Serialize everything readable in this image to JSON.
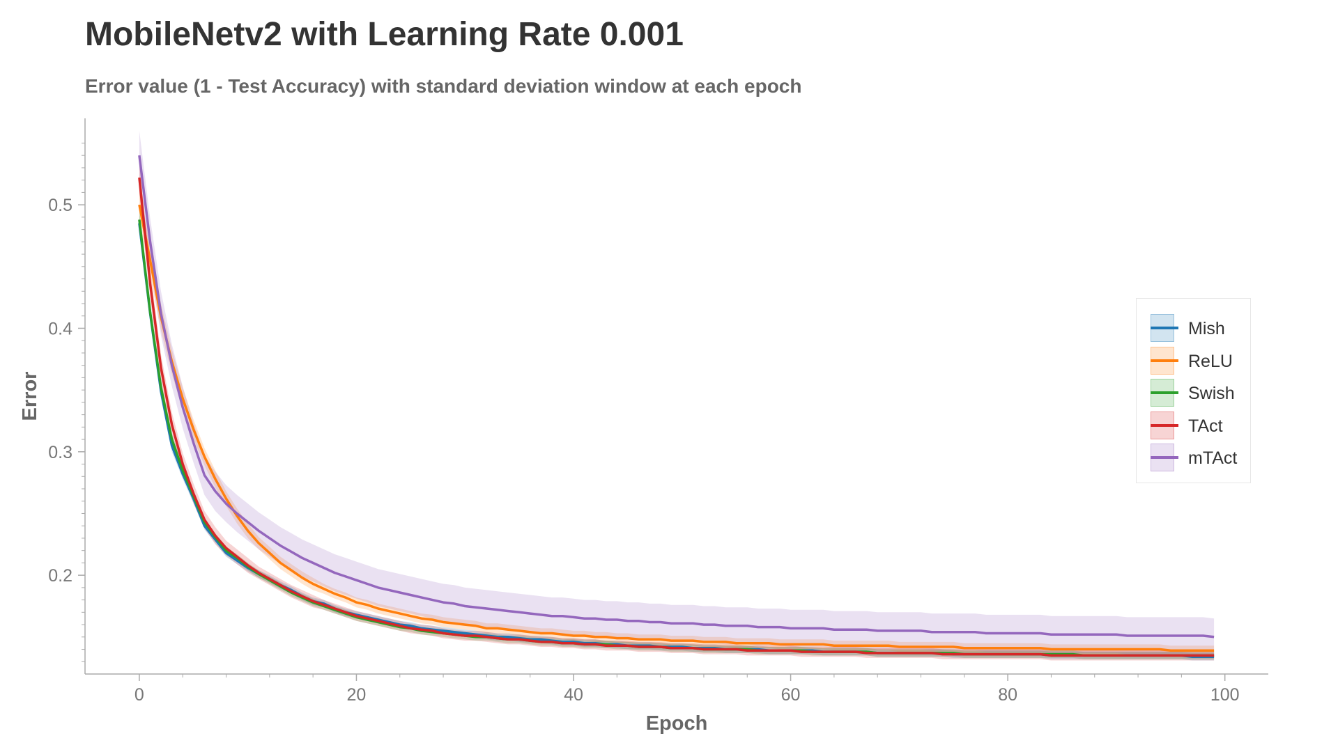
{
  "chart_data": {
    "type": "line",
    "title": "MobileNetv2 with Learning Rate 0.001",
    "subtitle": "Error value (1 - Test Accuracy) with standard deviation window at each epoch",
    "xlabel": "Epoch",
    "ylabel": "Error",
    "xlim": [
      -5,
      104
    ],
    "ylim": [
      0.12,
      0.57
    ],
    "xticks": [
      0,
      20,
      40,
      60,
      80,
      100
    ],
    "yticks": [
      0.2,
      0.3,
      0.4,
      0.5
    ],
    "grid": false,
    "legend_position": "right",
    "x": [
      0,
      1,
      2,
      3,
      4,
      5,
      6,
      7,
      8,
      9,
      10,
      11,
      12,
      13,
      14,
      15,
      16,
      17,
      18,
      19,
      20,
      21,
      22,
      23,
      24,
      25,
      26,
      27,
      28,
      29,
      30,
      31,
      32,
      33,
      34,
      35,
      36,
      37,
      38,
      39,
      40,
      41,
      42,
      43,
      44,
      45,
      46,
      47,
      48,
      49,
      50,
      51,
      52,
      53,
      54,
      55,
      56,
      57,
      58,
      59,
      60,
      61,
      62,
      63,
      64,
      65,
      66,
      67,
      68,
      69,
      70,
      71,
      72,
      73,
      74,
      75,
      76,
      77,
      78,
      79,
      80,
      81,
      82,
      83,
      84,
      85,
      86,
      87,
      88,
      89,
      90,
      91,
      92,
      93,
      94,
      95,
      96,
      97,
      98,
      99
    ],
    "series": [
      {
        "name": "Mish",
        "color": "#1f77b4",
        "values": [
          0.485,
          0.412,
          0.349,
          0.305,
          0.282,
          0.262,
          0.24,
          0.229,
          0.218,
          0.212,
          0.206,
          0.201,
          0.197,
          0.192,
          0.188,
          0.183,
          0.179,
          0.177,
          0.173,
          0.17,
          0.168,
          0.166,
          0.164,
          0.162,
          0.16,
          0.159,
          0.157,
          0.156,
          0.155,
          0.154,
          0.153,
          0.152,
          0.151,
          0.15,
          0.15,
          0.149,
          0.148,
          0.148,
          0.147,
          0.146,
          0.146,
          0.145,
          0.145,
          0.144,
          0.144,
          0.143,
          0.143,
          0.143,
          0.142,
          0.142,
          0.142,
          0.141,
          0.141,
          0.141,
          0.14,
          0.14,
          0.14,
          0.14,
          0.139,
          0.139,
          0.139,
          0.139,
          0.139,
          0.138,
          0.138,
          0.138,
          0.138,
          0.138,
          0.137,
          0.137,
          0.137,
          0.137,
          0.137,
          0.137,
          0.137,
          0.136,
          0.136,
          0.136,
          0.136,
          0.136,
          0.136,
          0.136,
          0.136,
          0.136,
          0.135,
          0.135,
          0.135,
          0.135,
          0.135,
          0.135,
          0.135,
          0.135,
          0.135,
          0.135,
          0.135,
          0.135,
          0.135,
          0.134,
          0.134,
          0.134
        ],
        "std": [
          0.008,
          0.007,
          0.006,
          0.005,
          0.004,
          0.004,
          0.003,
          0.003,
          0.003,
          0.003,
          0.003,
          0.003,
          0.003,
          0.003,
          0.003,
          0.003,
          0.003,
          0.003,
          0.003,
          0.003,
          0.003,
          0.003,
          0.003,
          0.003,
          0.003,
          0.003,
          0.003,
          0.003,
          0.003,
          0.003,
          0.003,
          0.003,
          0.003,
          0.003,
          0.003,
          0.003,
          0.003,
          0.003,
          0.003,
          0.003,
          0.003,
          0.003,
          0.003,
          0.003,
          0.003,
          0.003,
          0.003,
          0.003,
          0.003,
          0.003,
          0.003,
          0.003,
          0.003,
          0.003,
          0.003,
          0.003,
          0.003,
          0.003,
          0.003,
          0.003,
          0.003,
          0.003,
          0.003,
          0.003,
          0.003,
          0.003,
          0.003,
          0.003,
          0.003,
          0.003,
          0.003,
          0.003,
          0.003,
          0.003,
          0.003,
          0.003,
          0.003,
          0.003,
          0.003,
          0.003,
          0.003,
          0.003,
          0.003,
          0.003,
          0.003,
          0.003,
          0.003,
          0.003,
          0.003,
          0.003,
          0.003,
          0.003,
          0.003,
          0.003,
          0.003,
          0.003,
          0.003,
          0.003,
          0.003,
          0.003
        ]
      },
      {
        "name": "ReLU",
        "color": "#ff7f0e",
        "values": [
          0.5,
          0.455,
          0.409,
          0.373,
          0.343,
          0.318,
          0.296,
          0.278,
          0.262,
          0.248,
          0.236,
          0.226,
          0.218,
          0.21,
          0.204,
          0.198,
          0.193,
          0.189,
          0.185,
          0.182,
          0.178,
          0.176,
          0.173,
          0.171,
          0.169,
          0.167,
          0.165,
          0.164,
          0.162,
          0.161,
          0.16,
          0.159,
          0.157,
          0.157,
          0.156,
          0.155,
          0.154,
          0.153,
          0.153,
          0.152,
          0.151,
          0.151,
          0.15,
          0.15,
          0.149,
          0.149,
          0.148,
          0.148,
          0.148,
          0.147,
          0.147,
          0.147,
          0.146,
          0.146,
          0.146,
          0.145,
          0.145,
          0.145,
          0.145,
          0.144,
          0.144,
          0.144,
          0.144,
          0.144,
          0.143,
          0.143,
          0.143,
          0.143,
          0.143,
          0.143,
          0.142,
          0.142,
          0.142,
          0.142,
          0.142,
          0.142,
          0.141,
          0.141,
          0.141,
          0.141,
          0.141,
          0.141,
          0.141,
          0.141,
          0.14,
          0.14,
          0.14,
          0.14,
          0.14,
          0.14,
          0.14,
          0.14,
          0.14,
          0.14,
          0.14,
          0.139,
          0.139,
          0.139,
          0.139,
          0.139
        ],
        "std": [
          0.013,
          0.012,
          0.011,
          0.01,
          0.009,
          0.008,
          0.007,
          0.007,
          0.006,
          0.006,
          0.006,
          0.005,
          0.005,
          0.005,
          0.005,
          0.005,
          0.005,
          0.004,
          0.004,
          0.004,
          0.004,
          0.004,
          0.004,
          0.004,
          0.004,
          0.004,
          0.004,
          0.004,
          0.004,
          0.004,
          0.004,
          0.004,
          0.004,
          0.004,
          0.004,
          0.004,
          0.004,
          0.004,
          0.004,
          0.004,
          0.004,
          0.004,
          0.004,
          0.004,
          0.004,
          0.004,
          0.004,
          0.004,
          0.004,
          0.004,
          0.004,
          0.004,
          0.004,
          0.004,
          0.004,
          0.004,
          0.004,
          0.004,
          0.004,
          0.004,
          0.004,
          0.004,
          0.004,
          0.004,
          0.004,
          0.004,
          0.004,
          0.004,
          0.004,
          0.004,
          0.004,
          0.004,
          0.004,
          0.004,
          0.004,
          0.004,
          0.004,
          0.004,
          0.004,
          0.004,
          0.004,
          0.004,
          0.004,
          0.004,
          0.004,
          0.004,
          0.004,
          0.004,
          0.004,
          0.004,
          0.004,
          0.004,
          0.004,
          0.004,
          0.004,
          0.004,
          0.004,
          0.004,
          0.004,
          0.004
        ]
      },
      {
        "name": "Swish",
        "color": "#2ca02c",
        "values": [
          0.488,
          0.413,
          0.352,
          0.31,
          0.285,
          0.264,
          0.243,
          0.231,
          0.22,
          0.214,
          0.207,
          0.201,
          0.196,
          0.191,
          0.186,
          0.182,
          0.178,
          0.175,
          0.172,
          0.169,
          0.166,
          0.164,
          0.162,
          0.16,
          0.158,
          0.157,
          0.155,
          0.154,
          0.153,
          0.152,
          0.151,
          0.15,
          0.15,
          0.149,
          0.148,
          0.148,
          0.147,
          0.146,
          0.146,
          0.145,
          0.145,
          0.144,
          0.144,
          0.144,
          0.143,
          0.143,
          0.142,
          0.142,
          0.142,
          0.141,
          0.141,
          0.141,
          0.14,
          0.14,
          0.14,
          0.14,
          0.14,
          0.139,
          0.139,
          0.139,
          0.139,
          0.139,
          0.138,
          0.138,
          0.138,
          0.138,
          0.138,
          0.138,
          0.137,
          0.137,
          0.137,
          0.137,
          0.137,
          0.137,
          0.137,
          0.137,
          0.136,
          0.136,
          0.136,
          0.136,
          0.136,
          0.136,
          0.136,
          0.136,
          0.136,
          0.136,
          0.136,
          0.135,
          0.135,
          0.135,
          0.135,
          0.135,
          0.135,
          0.135,
          0.135,
          0.135,
          0.135,
          0.135,
          0.135,
          0.135
        ],
        "std": [
          0.008,
          0.007,
          0.006,
          0.005,
          0.004,
          0.004,
          0.003,
          0.003,
          0.003,
          0.003,
          0.003,
          0.003,
          0.003,
          0.003,
          0.003,
          0.003,
          0.003,
          0.003,
          0.003,
          0.003,
          0.003,
          0.003,
          0.003,
          0.003,
          0.003,
          0.003,
          0.003,
          0.003,
          0.003,
          0.003,
          0.003,
          0.003,
          0.003,
          0.003,
          0.003,
          0.003,
          0.003,
          0.003,
          0.003,
          0.003,
          0.003,
          0.003,
          0.003,
          0.003,
          0.003,
          0.003,
          0.003,
          0.003,
          0.003,
          0.003,
          0.003,
          0.003,
          0.003,
          0.003,
          0.003,
          0.003,
          0.003,
          0.003,
          0.003,
          0.003,
          0.003,
          0.003,
          0.003,
          0.003,
          0.003,
          0.003,
          0.003,
          0.003,
          0.003,
          0.003,
          0.003,
          0.003,
          0.003,
          0.003,
          0.003,
          0.003,
          0.003,
          0.003,
          0.003,
          0.003,
          0.003,
          0.003,
          0.003,
          0.003,
          0.003,
          0.003,
          0.003,
          0.003,
          0.003,
          0.003,
          0.003,
          0.003,
          0.003,
          0.003,
          0.003,
          0.003,
          0.003,
          0.003,
          0.003,
          0.003
        ]
      },
      {
        "name": "TAct",
        "color": "#d62728",
        "values": [
          0.522,
          0.436,
          0.368,
          0.322,
          0.29,
          0.266,
          0.245,
          0.232,
          0.222,
          0.215,
          0.208,
          0.202,
          0.197,
          0.192,
          0.187,
          0.183,
          0.179,
          0.176,
          0.173,
          0.17,
          0.167,
          0.165,
          0.163,
          0.161,
          0.159,
          0.157,
          0.156,
          0.155,
          0.153,
          0.152,
          0.151,
          0.151,
          0.15,
          0.149,
          0.148,
          0.148,
          0.147,
          0.146,
          0.146,
          0.145,
          0.145,
          0.144,
          0.144,
          0.143,
          0.143,
          0.143,
          0.142,
          0.142,
          0.142,
          0.141,
          0.141,
          0.141,
          0.14,
          0.14,
          0.14,
          0.14,
          0.139,
          0.139,
          0.139,
          0.139,
          0.139,
          0.138,
          0.138,
          0.138,
          0.138,
          0.138,
          0.138,
          0.137,
          0.137,
          0.137,
          0.137,
          0.137,
          0.137,
          0.137,
          0.136,
          0.136,
          0.136,
          0.136,
          0.136,
          0.136,
          0.136,
          0.136,
          0.136,
          0.136,
          0.135,
          0.135,
          0.135,
          0.135,
          0.135,
          0.135,
          0.135,
          0.135,
          0.135,
          0.135,
          0.135,
          0.135,
          0.135,
          0.135,
          0.135,
          0.135
        ],
        "std": [
          0.013,
          0.012,
          0.011,
          0.01,
          0.009,
          0.008,
          0.007,
          0.007,
          0.006,
          0.006,
          0.006,
          0.005,
          0.005,
          0.005,
          0.005,
          0.005,
          0.005,
          0.004,
          0.004,
          0.004,
          0.004,
          0.004,
          0.004,
          0.004,
          0.004,
          0.004,
          0.004,
          0.004,
          0.004,
          0.004,
          0.004,
          0.004,
          0.004,
          0.004,
          0.004,
          0.004,
          0.004,
          0.004,
          0.004,
          0.004,
          0.004,
          0.004,
          0.004,
          0.004,
          0.004,
          0.004,
          0.004,
          0.004,
          0.004,
          0.004,
          0.004,
          0.004,
          0.004,
          0.004,
          0.004,
          0.004,
          0.004,
          0.004,
          0.004,
          0.004,
          0.004,
          0.004,
          0.004,
          0.004,
          0.004,
          0.004,
          0.004,
          0.004,
          0.004,
          0.004,
          0.004,
          0.004,
          0.004,
          0.004,
          0.004,
          0.004,
          0.004,
          0.004,
          0.004,
          0.004,
          0.004,
          0.004,
          0.004,
          0.004,
          0.004,
          0.004,
          0.004,
          0.004,
          0.004,
          0.004,
          0.004,
          0.004,
          0.004,
          0.004,
          0.004,
          0.004,
          0.004,
          0.004,
          0.004,
          0.004
        ]
      },
      {
        "name": "mTAct",
        "color": "#9467bd",
        "values": [
          0.54,
          0.47,
          0.412,
          0.37,
          0.336,
          0.307,
          0.281,
          0.268,
          0.258,
          0.25,
          0.243,
          0.236,
          0.23,
          0.224,
          0.219,
          0.214,
          0.21,
          0.206,
          0.202,
          0.199,
          0.196,
          0.193,
          0.19,
          0.188,
          0.186,
          0.184,
          0.182,
          0.18,
          0.178,
          0.177,
          0.175,
          0.174,
          0.173,
          0.172,
          0.171,
          0.17,
          0.169,
          0.168,
          0.167,
          0.167,
          0.166,
          0.165,
          0.165,
          0.164,
          0.164,
          0.163,
          0.163,
          0.162,
          0.162,
          0.161,
          0.161,
          0.161,
          0.16,
          0.16,
          0.159,
          0.159,
          0.159,
          0.158,
          0.158,
          0.158,
          0.157,
          0.157,
          0.157,
          0.157,
          0.156,
          0.156,
          0.156,
          0.156,
          0.155,
          0.155,
          0.155,
          0.155,
          0.155,
          0.154,
          0.154,
          0.154,
          0.154,
          0.154,
          0.153,
          0.153,
          0.153,
          0.153,
          0.153,
          0.153,
          0.152,
          0.152,
          0.152,
          0.152,
          0.152,
          0.152,
          0.152,
          0.151,
          0.151,
          0.151,
          0.151,
          0.151,
          0.151,
          0.151,
          0.151,
          0.15
        ],
        "std": [
          0.02,
          0.019,
          0.018,
          0.017,
          0.017,
          0.016,
          0.016,
          0.016,
          0.015,
          0.015,
          0.015,
          0.015,
          0.015,
          0.015,
          0.015,
          0.015,
          0.015,
          0.015,
          0.015,
          0.015,
          0.015,
          0.015,
          0.015,
          0.015,
          0.015,
          0.015,
          0.015,
          0.015,
          0.015,
          0.015,
          0.015,
          0.015,
          0.015,
          0.015,
          0.015,
          0.015,
          0.015,
          0.015,
          0.015,
          0.015,
          0.015,
          0.015,
          0.015,
          0.015,
          0.015,
          0.015,
          0.015,
          0.015,
          0.015,
          0.015,
          0.015,
          0.015,
          0.015,
          0.015,
          0.015,
          0.015,
          0.015,
          0.015,
          0.015,
          0.015,
          0.015,
          0.015,
          0.015,
          0.015,
          0.015,
          0.015,
          0.015,
          0.015,
          0.015,
          0.015,
          0.015,
          0.015,
          0.015,
          0.015,
          0.015,
          0.015,
          0.015,
          0.015,
          0.015,
          0.015,
          0.015,
          0.015,
          0.015,
          0.015,
          0.015,
          0.015,
          0.015,
          0.015,
          0.015,
          0.015,
          0.015,
          0.015,
          0.015,
          0.015,
          0.015,
          0.015,
          0.015,
          0.015,
          0.015,
          0.015
        ]
      }
    ]
  }
}
